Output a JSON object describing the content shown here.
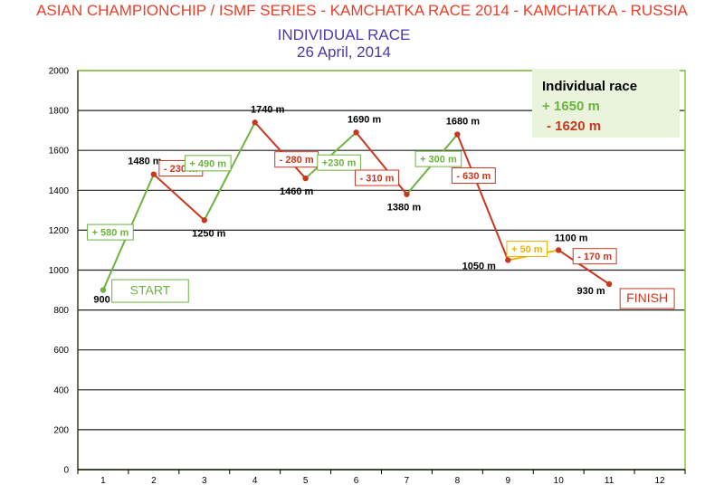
{
  "header": {
    "title": "ASIAN CHAMPIONCHIP / ISMF SERIES - KAMCHATKA RACE 2014 - KAMCHATKA - RUSSIA",
    "subtitle": "INDIVIDUAL RACE",
    "date": "26 April, 2014"
  },
  "colors": {
    "up": "#6cb33f",
    "down": "#c9371f",
    "flat": "#f0b400",
    "title": "#e8402a",
    "subtitle": "#4a3bb0",
    "legend_bg": "#eaf3dc"
  },
  "chart_data": {
    "type": "line",
    "x": [
      1,
      2,
      3,
      4,
      5,
      6,
      7,
      8,
      9,
      10,
      11
    ],
    "y": [
      900,
      1480,
      1250,
      1740,
      1460,
      1690,
      1380,
      1680,
      1050,
      1100,
      930
    ],
    "point_labels": [
      "900 m",
      "1480 m",
      "1250 m",
      "1740 m",
      "1460 m",
      "1690 m",
      "1380 m",
      "1680 m",
      "1050 m",
      "1100 m",
      "930 m"
    ],
    "segments": [
      {
        "label": "+ 580 m",
        "dir": "up"
      },
      {
        "label": "- 230 m",
        "dir": "down"
      },
      {
        "label": "+ 490 m",
        "dir": "up"
      },
      {
        "label": "- 280 m",
        "dir": "down"
      },
      {
        "label": "+230 m",
        "dir": "up"
      },
      {
        "label": "- 310 m",
        "dir": "down"
      },
      {
        "label": "+ 300 m",
        "dir": "up"
      },
      {
        "label": "- 630 m",
        "dir": "down"
      },
      {
        "label": "+ 50 m",
        "dir": "flat"
      },
      {
        "label": "- 170 m",
        "dir": "down"
      }
    ],
    "x_ticks": [
      1,
      2,
      3,
      4,
      5,
      6,
      7,
      8,
      9,
      10,
      11,
      12
    ],
    "y_ticks": [
      0,
      200,
      400,
      600,
      800,
      1000,
      1200,
      1400,
      1600,
      1800,
      2000
    ],
    "xlim": [
      0.5,
      12.5
    ],
    "ylim": [
      0,
      2000
    ],
    "grid": true,
    "start_label": "START",
    "finish_label": "FINISH",
    "legend": {
      "title": "Individual race",
      "ascent": "+ 1650 m",
      "descent": "- 1620 m",
      "placement": "top-right"
    }
  }
}
